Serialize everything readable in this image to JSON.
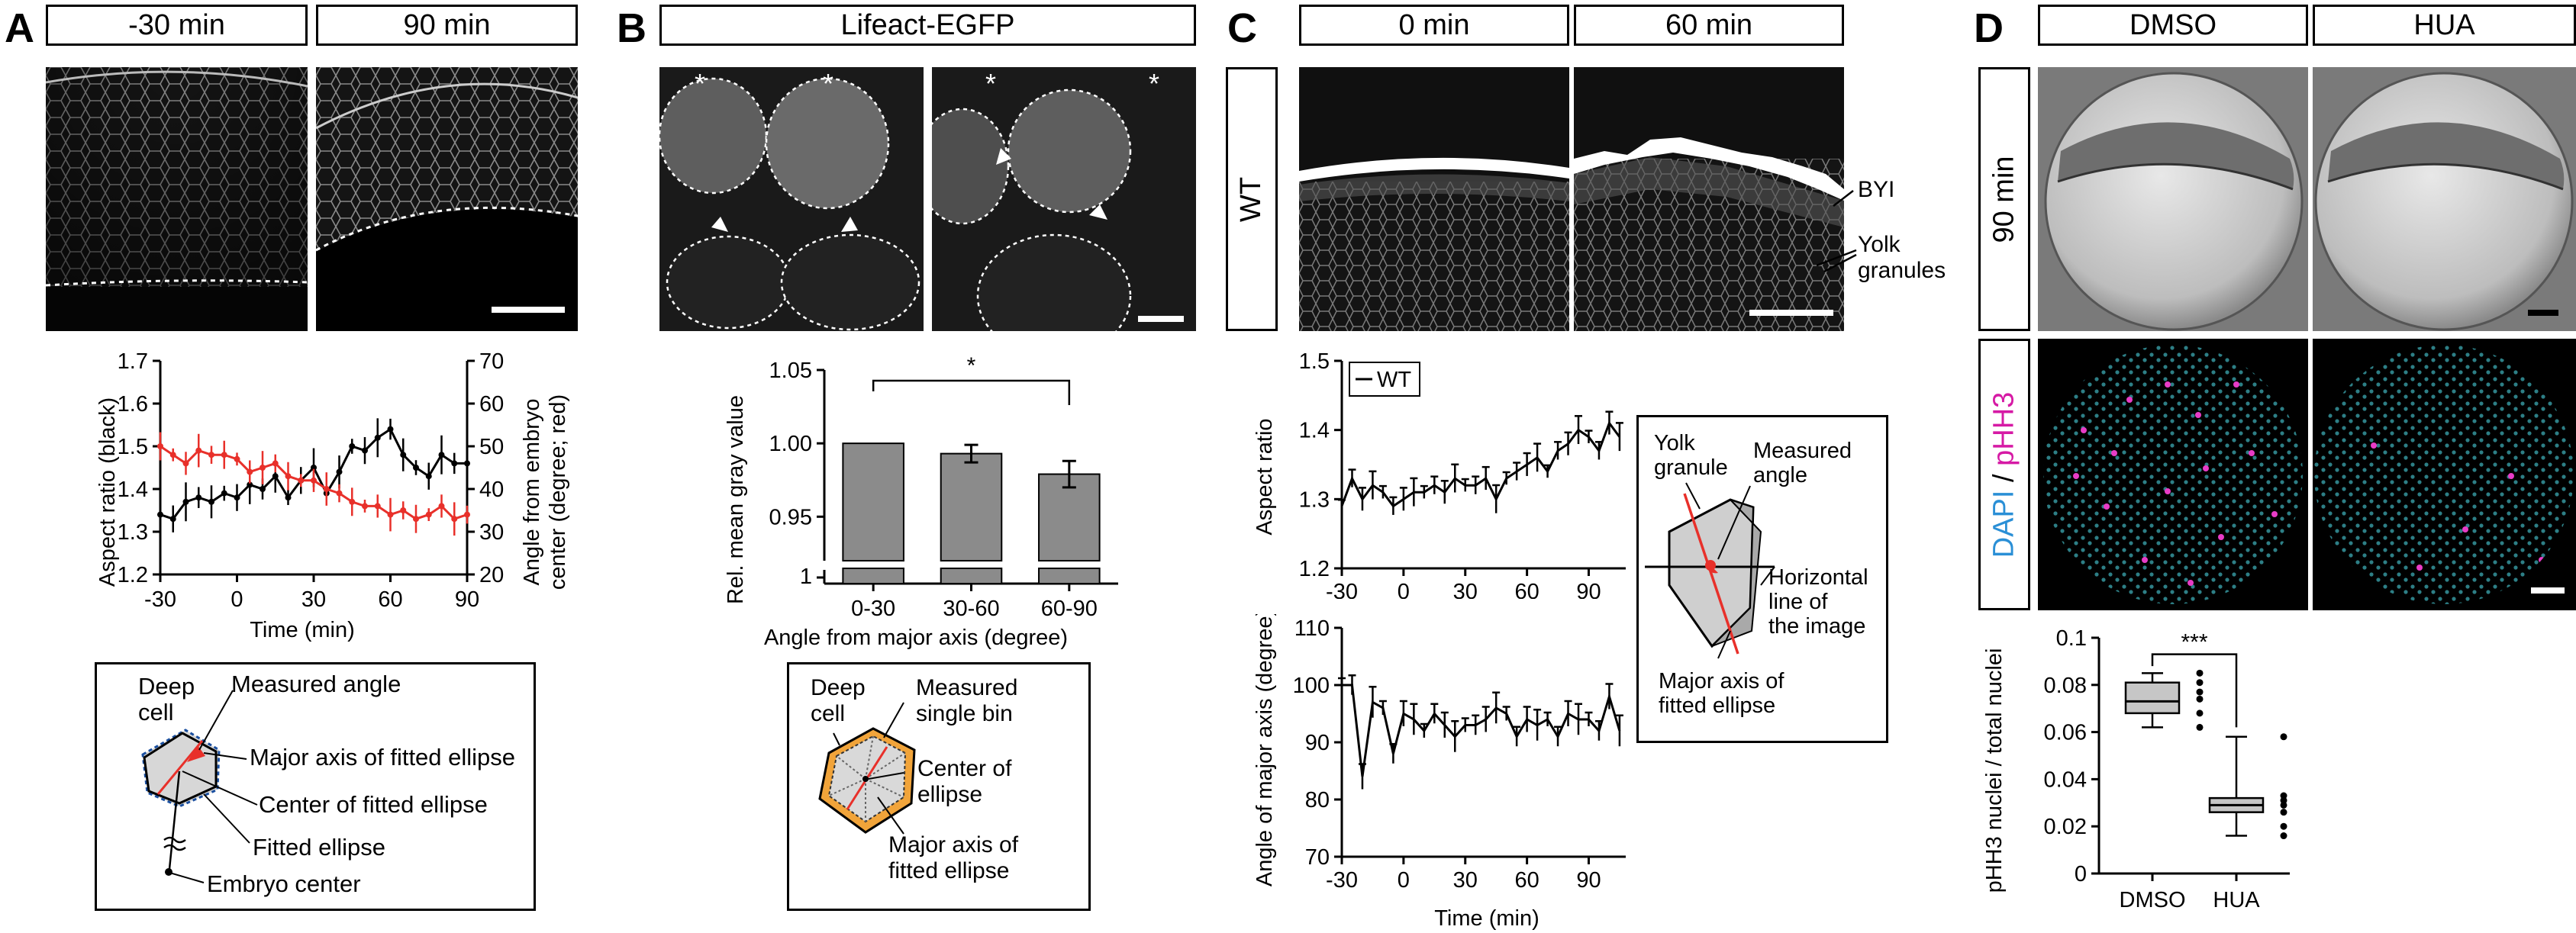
{
  "panels": {
    "A": {
      "label": "A",
      "headers": [
        "-30 min",
        "90 min"
      ],
      "schematic": {
        "deep_cell": "Deep\ncell",
        "measured_angle": "Measured angle",
        "major_axis": "Major axis of fitted ellipse",
        "center": "Center of fitted ellipse",
        "fitted_ellipse": "Fitted ellipse",
        "embryo_center": "Embryo center"
      }
    },
    "B": {
      "label": "B",
      "header": "Lifeact-EGFP",
      "schematic": {
        "deep_cell": "Deep\ncell",
        "measured_bin": "Measured\nsingle bin",
        "center": "Center of\nellipse",
        "major_axis": "Major axis of\nfitted ellipse"
      }
    },
    "C": {
      "label": "C",
      "headers": [
        "0 min",
        "60 min"
      ],
      "row_label": "WT",
      "annotations": {
        "byi": "BYI",
        "yolk": "Yolk\ngranules"
      },
      "schematic": {
        "yolk_granule": "Yolk\ngranule",
        "measured_angle": "Measured\nangle",
        "horizontal": "Horizontal\nline of\nthe image",
        "major_axis": "Major axis of\nfitted ellipse"
      }
    },
    "D": {
      "label": "D",
      "headers": [
        "DMSO",
        "HUA"
      ],
      "row_label": "90 min",
      "stain_dapi": "DAPI",
      "stain_sep": " / ",
      "stain_phh3": "pHH3"
    }
  },
  "chart_data": [
    {
      "id": "A",
      "type": "line",
      "xlabel": "Time (min)",
      "ylabel": "Aspect ratio (black)",
      "y2label": "Angle from embryo\ncenter (degree; red)",
      "xlim": [
        -30,
        90
      ],
      "xticks": [
        -30,
        0,
        30,
        60,
        90
      ],
      "ylim": [
        1.2,
        1.7
      ],
      "yticks": [
        1.2,
        1.3,
        1.4,
        1.5,
        1.6,
        1.7
      ],
      "y2lim": [
        20,
        70
      ],
      "y2ticks": [
        20,
        30,
        40,
        50,
        60,
        70
      ],
      "x": [
        -30,
        -25,
        -20,
        -15,
        -10,
        -5,
        0,
        5,
        10,
        15,
        20,
        25,
        30,
        35,
        40,
        45,
        50,
        55,
        60,
        65,
        70,
        75,
        80,
        85,
        90
      ],
      "series": [
        {
          "color": "#000000",
          "axis": "left",
          "values": [
            1.34,
            1.33,
            1.37,
            1.38,
            1.37,
            1.39,
            1.38,
            1.41,
            1.4,
            1.43,
            1.38,
            1.42,
            1.45,
            1.39,
            1.44,
            1.5,
            1.49,
            1.52,
            1.54,
            1.48,
            1.45,
            1.43,
            1.48,
            1.46,
            1.46
          ]
        },
        {
          "color": "#e8302a",
          "axis": "right",
          "values": [
            50,
            48,
            46,
            49,
            48,
            48,
            47,
            44,
            45,
            46,
            43,
            42,
            42,
            40,
            39,
            37,
            36,
            36,
            34,
            35,
            33,
            34,
            36,
            33,
            34
          ]
        }
      ]
    },
    {
      "id": "B",
      "type": "bar",
      "categories": [
        "0-30",
        "30-60",
        "60-90"
      ],
      "values": [
        1.0,
        0.993,
        0.979
      ],
      "errors": [
        0,
        0.006,
        0.009
      ],
      "xlabel": "Angle from major axis (degree)",
      "ylabel": "Rel. mean gray value",
      "ylim": [
        0.92,
        1.05
      ],
      "yticks": [
        0.95,
        1.0,
        1.05
      ],
      "axis_break_bottom": "1",
      "significance": "*"
    },
    {
      "id": "C1",
      "type": "line",
      "legend": "WT",
      "ylabel": "Aspect ratio",
      "xlim": [
        -30,
        108
      ],
      "xticks": [
        -30,
        0,
        30,
        60,
        90
      ],
      "ylim": [
        1.2,
        1.5
      ],
      "yticks": [
        1.2,
        1.3,
        1.4,
        1.5
      ],
      "x": [
        -30,
        -25,
        -20,
        -15,
        -10,
        -5,
        0,
        5,
        10,
        15,
        20,
        25,
        30,
        35,
        40,
        45,
        50,
        55,
        60,
        65,
        70,
        75,
        80,
        85,
        90,
        95,
        100,
        105
      ],
      "values": [
        1.29,
        1.33,
        1.3,
        1.32,
        1.31,
        1.29,
        1.3,
        1.31,
        1.31,
        1.32,
        1.31,
        1.33,
        1.32,
        1.32,
        1.33,
        1.3,
        1.33,
        1.34,
        1.35,
        1.36,
        1.34,
        1.37,
        1.38,
        1.4,
        1.39,
        1.37,
        1.41,
        1.39
      ]
    },
    {
      "id": "C2",
      "type": "line",
      "xlabel": "Time (min)",
      "ylabel": "Angle of major axis (degree)",
      "xlim": [
        -30,
        108
      ],
      "xticks": [
        -30,
        0,
        30,
        60,
        90
      ],
      "ylim": [
        70,
        110
      ],
      "yticks": [
        70,
        80,
        90,
        100,
        110
      ],
      "x": [
        -30,
        -25,
        -20,
        -15,
        -10,
        -5,
        0,
        5,
        10,
        15,
        20,
        25,
        30,
        35,
        40,
        45,
        50,
        55,
        60,
        65,
        70,
        75,
        80,
        85,
        90,
        95,
        100,
        105
      ],
      "values": [
        100,
        100,
        84,
        97,
        96,
        88,
        95,
        94,
        92,
        95,
        93,
        91,
        93,
        93,
        94,
        96,
        95,
        91,
        94,
        93,
        94,
        91,
        95,
        94,
        94,
        92,
        98,
        92
      ]
    },
    {
      "id": "D",
      "type": "box",
      "categories": [
        "DMSO",
        "HUA"
      ],
      "ylabel": "pHH3 nuclei / total nuclei",
      "ylim": [
        0,
        0.1
      ],
      "yticks": [
        0,
        0.02,
        0.04,
        0.06,
        0.08,
        0.1
      ],
      "boxes": [
        {
          "min": 0.062,
          "q1": 0.068,
          "median": 0.073,
          "q3": 0.081,
          "max": 0.085,
          "points": [
            0.085,
            0.081,
            0.077,
            0.074,
            0.068,
            0.062
          ]
        },
        {
          "min": 0.016,
          "q1": 0.026,
          "median": 0.029,
          "q3": 0.032,
          "max": 0.058,
          "points": [
            0.058,
            0.033,
            0.031,
            0.029,
            0.026,
            0.02,
            0.016
          ]
        }
      ],
      "significance": "***"
    }
  ]
}
